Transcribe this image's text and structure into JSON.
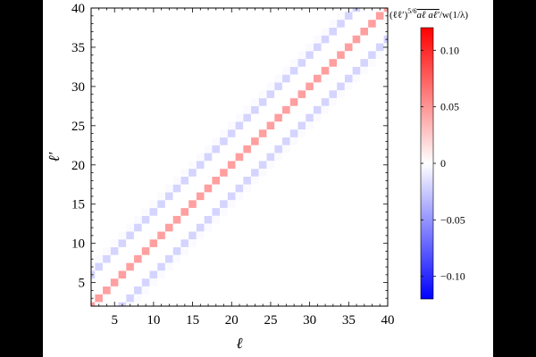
{
  "chart_data": {
    "type": "heatmap",
    "title": "",
    "xlabel": "ℓ",
    "ylabel": "ℓ′",
    "xlim": [
      2,
      40
    ],
    "ylim": [
      2,
      40
    ],
    "x_ticks": [
      5,
      10,
      15,
      20,
      25,
      30,
      35,
      40
    ],
    "y_ticks": [
      5,
      10,
      15,
      20,
      25,
      30,
      35,
      40
    ],
    "colorbar": {
      "label": "(ℓℓ′)^{5/6} ̅a̅ℓ̅a̅ℓ′ / w(1/λ)",
      "label_main": "(ℓℓ′)",
      "label_exp": "5/6",
      "label_over": "aℓ aℓ′",
      "label_tail": "/w(1/λ)",
      "range": [
        -0.12,
        0.12
      ],
      "ticks": [
        0.1,
        0.05,
        0,
        -0.05,
        -0.1
      ],
      "tick_labels": [
        "0.10",
        "0.05",
        "0",
        "−0.05",
        "−0.10"
      ],
      "colors": {
        "neg": "#0000ff",
        "zero": "#ffffff",
        "pos": "#ff0000"
      }
    },
    "cells": {
      "description_rule": "value depends on |ℓ − ℓ′|",
      "diagonal_offset_values": {
        "0": 0.045,
        "1": 0.0,
        "2": 0.0,
        "3": 0.0,
        "4": -0.02,
        "5": -0.002
      },
      "l_range": [
        2,
        40
      ]
    }
  }
}
